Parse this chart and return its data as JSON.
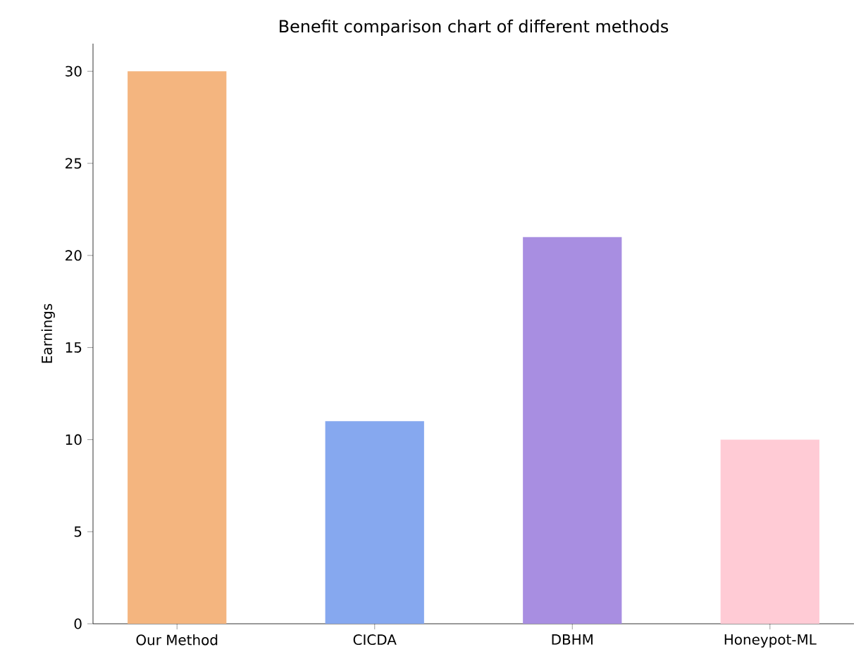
{
  "chart_data": {
    "type": "bar",
    "title": "Benefit comparison chart of different methods",
    "ylabel": "Earnings",
    "categories": [
      "Our Method",
      "CICDA",
      "DBHM",
      "Honeypot-ML"
    ],
    "values": [
      30,
      11,
      21,
      10
    ],
    "colors": [
      "#f4b57f",
      "#86a8ef",
      "#a88ee1",
      "#ffcbd5"
    ],
    "ylim": [
      0,
      31.5
    ],
    "yticks": [
      0,
      5,
      10,
      15,
      20,
      25,
      30
    ]
  }
}
